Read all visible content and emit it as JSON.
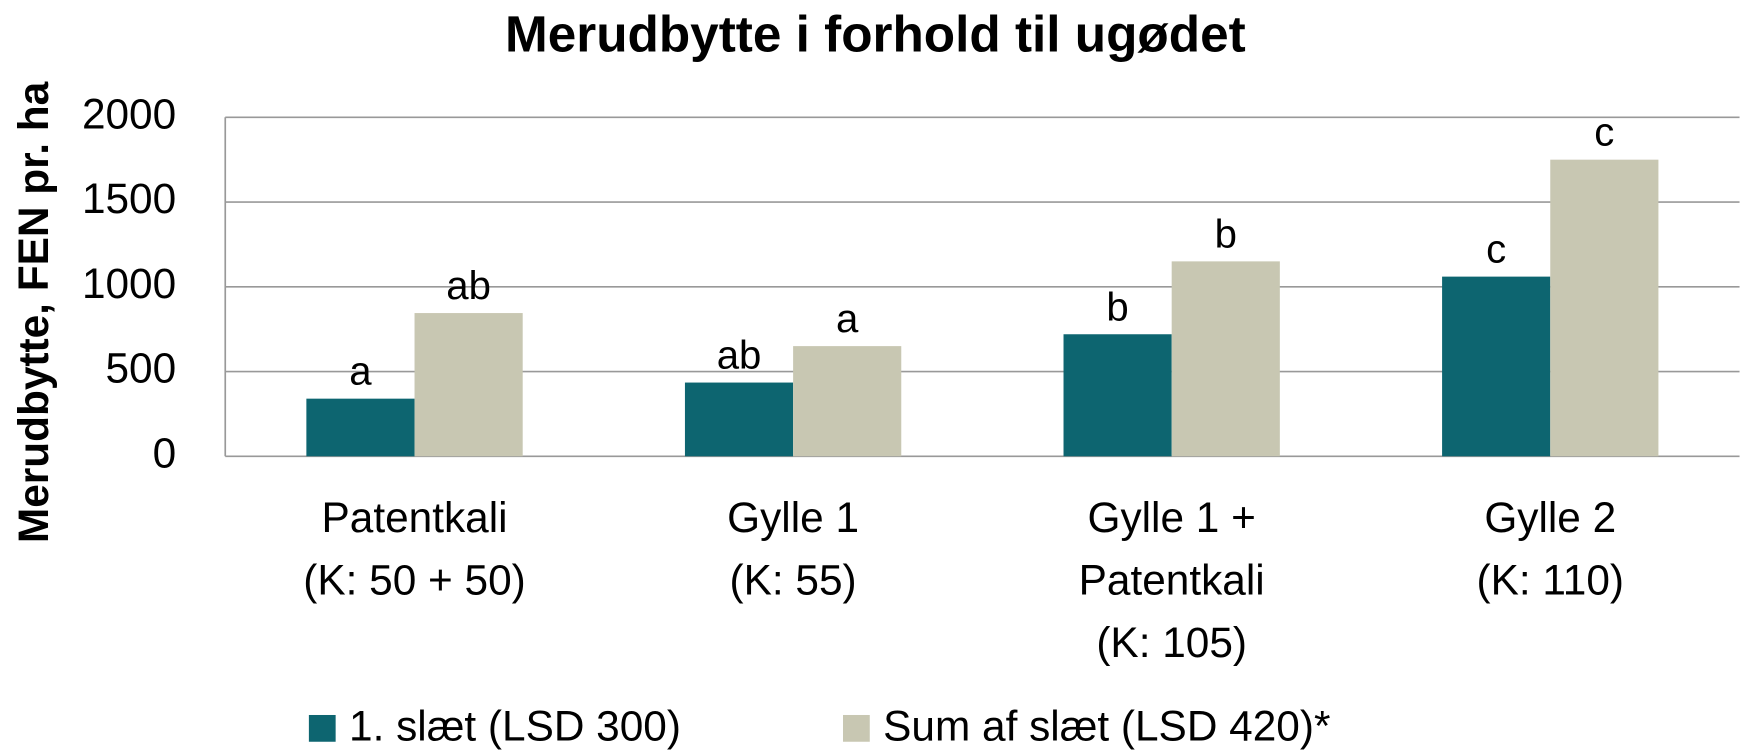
{
  "chart_data": {
    "type": "bar",
    "title": "Merudbytte i forhold til ugødet",
    "y_label": "Merudbytte, FEN pr. ha",
    "categories": [
      [
        "Patentkali",
        "(K: 50 + 50)"
      ],
      [
        "Gylle 1",
        "(K: 55)"
      ],
      [
        "Gylle 1 +",
        "Patentkali",
        "(K: 105)"
      ],
      [
        "Gylle 2",
        "(K: 110)"
      ]
    ],
    "series": [
      {
        "name": "1. slæt (LSD 300)",
        "color": "#0d6570",
        "values": [
          340,
          435,
          720,
          1060
        ],
        "significance_labels": [
          "a",
          "ab",
          "b",
          "c"
        ]
      },
      {
        "name": "Sum af slæt (LSD 420)*",
        "color": "#c8c7b2",
        "values": [
          845,
          650,
          1150,
          1750
        ],
        "significance_labels": [
          "ab",
          "a",
          "b",
          "c"
        ]
      }
    ],
    "ylim": [
      0,
      2000
    ],
    "yticks": [
      0,
      500,
      1000,
      1500,
      2000
    ],
    "grid": true,
    "legend": "bottom"
  }
}
